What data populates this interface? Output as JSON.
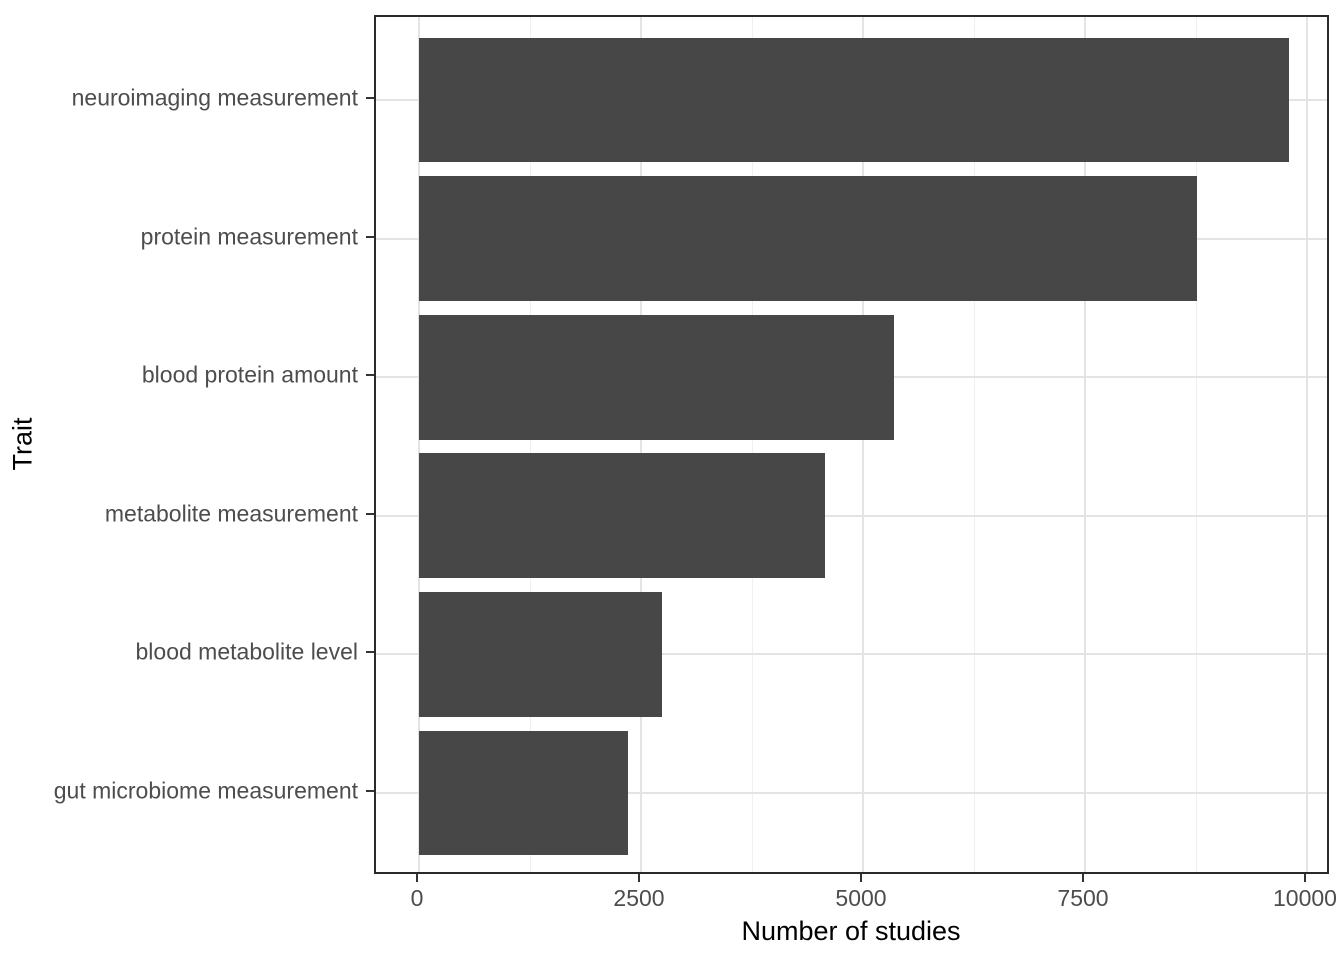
{
  "chart_data": {
    "type": "bar",
    "orientation": "horizontal",
    "title": "",
    "xlabel": "Number of studies",
    "ylabel": "Trait",
    "categories": [
      "neuroimaging measurement",
      "protein measurement",
      "blood protein amount",
      "metabolite measurement",
      "blood metabolite level",
      "gut microbiome measurement"
    ],
    "values": [
      9800,
      8760,
      5350,
      4570,
      2740,
      2350
    ],
    "x_major_ticks": [
      0,
      2500,
      5000,
      7500,
      10000
    ],
    "x_minor_ticks": [
      1250,
      3750,
      6250,
      8750
    ],
    "xlim": [
      0,
      10000
    ],
    "grid": "on",
    "legend": "none",
    "bar_fill": "#474747",
    "panel_border_color": "#2b2b2b",
    "grid_major_color": "#e4e4e4",
    "grid_minor_color": "#efefef",
    "tick_color": "#333333",
    "tick_label_color": "#4d4d4d",
    "axis_title_color": "#000000",
    "background_color": "#ffffff"
  }
}
